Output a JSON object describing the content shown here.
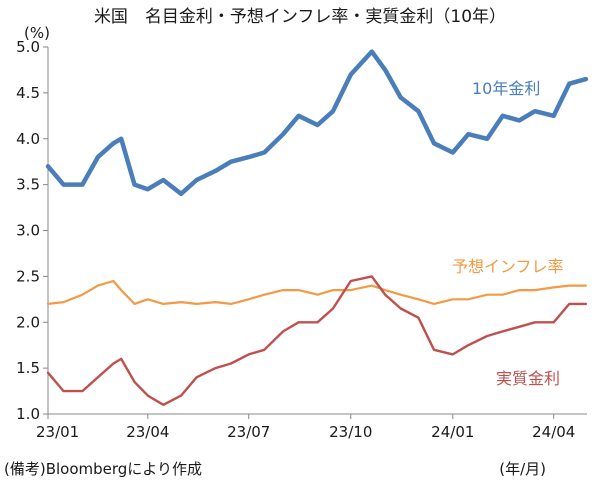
{
  "chart_data": {
    "type": "line",
    "title": "米国　名目金利・予想インフレ率・実質金利（10年）",
    "y_unit_label": "(%)",
    "x_unit_label": "(年/月)",
    "source_note": "(備考)Bloombergにより作成",
    "ylim": [
      1.0,
      5.0
    ],
    "y_ticks": [
      1.0,
      1.5,
      2.0,
      2.5,
      3.0,
      3.5,
      4.0,
      4.5,
      5.0
    ],
    "x_tick_labels": [
      "23/01",
      "23/04",
      "23/07",
      "23/10",
      "24/01",
      "24/04"
    ],
    "x_tick_dates": [
      "2023-01-01",
      "2023-04-01",
      "2023-07-01",
      "2023-10-01",
      "2024-01-01",
      "2024-04-01"
    ],
    "xlim": [
      "2023-01-01",
      "2024-05-01"
    ],
    "grid": false,
    "colors": {
      "nominal": "#4a7ebb",
      "breakeven": "#f39a44",
      "real": "#c0504d",
      "axis": "#888888"
    },
    "series": [
      {
        "name": "10年金利",
        "key": "nominal",
        "x": [
          "2023-01-01",
          "2023-01-15",
          "2023-02-01",
          "2023-02-15",
          "2023-03-01",
          "2023-03-08",
          "2023-03-20",
          "2023-04-01",
          "2023-04-15",
          "2023-05-01",
          "2023-05-15",
          "2023-06-01",
          "2023-06-15",
          "2023-07-01",
          "2023-07-15",
          "2023-08-01",
          "2023-08-15",
          "2023-09-01",
          "2023-09-15",
          "2023-10-01",
          "2023-10-20",
          "2023-11-01",
          "2023-11-15",
          "2023-12-01",
          "2023-12-15",
          "2024-01-01",
          "2024-01-15",
          "2024-02-01",
          "2024-02-15",
          "2024-03-01",
          "2024-03-15",
          "2024-04-01",
          "2024-04-15",
          "2024-04-30"
        ],
        "y": [
          3.7,
          3.5,
          3.5,
          3.8,
          3.95,
          4.0,
          3.5,
          3.45,
          3.55,
          3.4,
          3.55,
          3.65,
          3.75,
          3.8,
          3.85,
          4.05,
          4.25,
          4.15,
          4.3,
          4.7,
          4.95,
          4.75,
          4.45,
          4.3,
          3.95,
          3.85,
          4.05,
          4.0,
          4.25,
          4.2,
          4.3,
          4.25,
          4.6,
          4.65
        ]
      },
      {
        "name": "予想インフレ率",
        "key": "breakeven",
        "x": [
          "2023-01-01",
          "2023-01-15",
          "2023-02-01",
          "2023-02-15",
          "2023-03-01",
          "2023-03-08",
          "2023-03-20",
          "2023-04-01",
          "2023-04-15",
          "2023-05-01",
          "2023-05-15",
          "2023-06-01",
          "2023-06-15",
          "2023-07-01",
          "2023-07-15",
          "2023-08-01",
          "2023-08-15",
          "2023-09-01",
          "2023-09-15",
          "2023-10-01",
          "2023-10-20",
          "2023-11-01",
          "2023-11-15",
          "2023-12-01",
          "2023-12-15",
          "2024-01-01",
          "2024-01-15",
          "2024-02-01",
          "2024-02-15",
          "2024-03-01",
          "2024-03-15",
          "2024-04-01",
          "2024-04-15",
          "2024-04-30"
        ],
        "y": [
          2.2,
          2.22,
          2.3,
          2.4,
          2.45,
          2.35,
          2.2,
          2.25,
          2.2,
          2.22,
          2.2,
          2.22,
          2.2,
          2.25,
          2.3,
          2.35,
          2.35,
          2.3,
          2.35,
          2.35,
          2.4,
          2.35,
          2.3,
          2.25,
          2.2,
          2.25,
          2.25,
          2.3,
          2.3,
          2.35,
          2.35,
          2.38,
          2.4,
          2.4
        ]
      },
      {
        "name": "実質金利",
        "key": "real",
        "x": [
          "2023-01-01",
          "2023-01-15",
          "2023-02-01",
          "2023-02-15",
          "2023-03-01",
          "2023-03-08",
          "2023-03-20",
          "2023-04-01",
          "2023-04-15",
          "2023-05-01",
          "2023-05-15",
          "2023-06-01",
          "2023-06-15",
          "2023-07-01",
          "2023-07-15",
          "2023-08-01",
          "2023-08-15",
          "2023-09-01",
          "2023-09-15",
          "2023-10-01",
          "2023-10-20",
          "2023-11-01",
          "2023-11-15",
          "2023-12-01",
          "2023-12-15",
          "2024-01-01",
          "2024-01-15",
          "2024-02-01",
          "2024-02-15",
          "2024-03-01",
          "2024-03-15",
          "2024-04-01",
          "2024-04-15",
          "2024-04-30"
        ],
        "y": [
          1.45,
          1.25,
          1.25,
          1.4,
          1.55,
          1.6,
          1.35,
          1.2,
          1.1,
          1.2,
          1.4,
          1.5,
          1.55,
          1.65,
          1.7,
          1.9,
          2.0,
          2.0,
          2.15,
          2.45,
          2.5,
          2.3,
          2.15,
          2.05,
          1.7,
          1.65,
          1.75,
          1.85,
          1.9,
          1.95,
          2.0,
          2.0,
          2.2,
          2.2
        ]
      }
    ],
    "series_label_positions": [
      "upper-right",
      "middle-right",
      "lower-right"
    ]
  }
}
